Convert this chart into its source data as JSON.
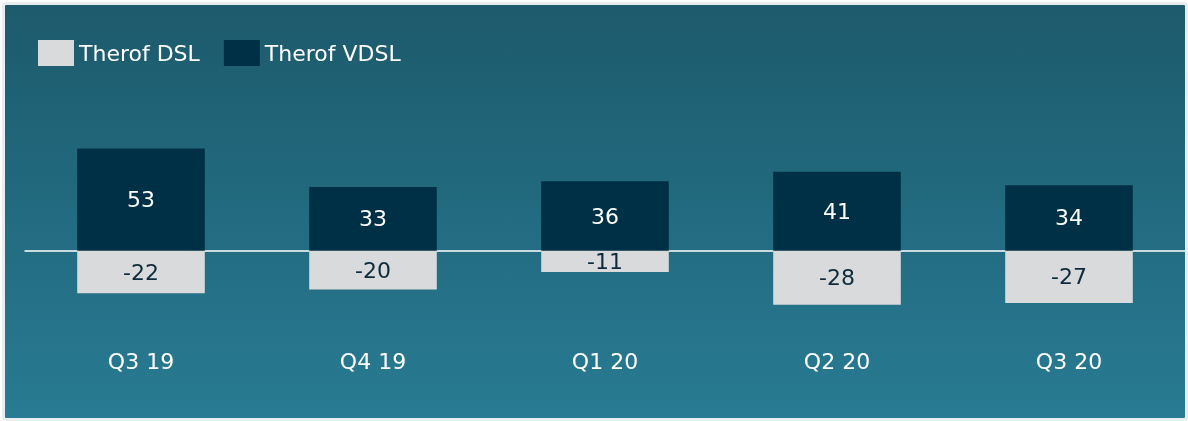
{
  "chart_data": {
    "type": "bar",
    "stacked": true,
    "data_labels": true,
    "legend": "top left",
    "categories": [
      "Q3 19",
      "Q4 19",
      "Q1 20",
      "Q2 20",
      "Q3 20"
    ],
    "series": [
      {
        "name": "Therof DSL",
        "color": "#d9dadc",
        "values": [
          -22,
          -20,
          -11,
          -28,
          -27
        ]
      },
      {
        "name": "Therof VDSL",
        "color": "#003045",
        "values": [
          53,
          33,
          36,
          41,
          34
        ]
      }
    ]
  }
}
